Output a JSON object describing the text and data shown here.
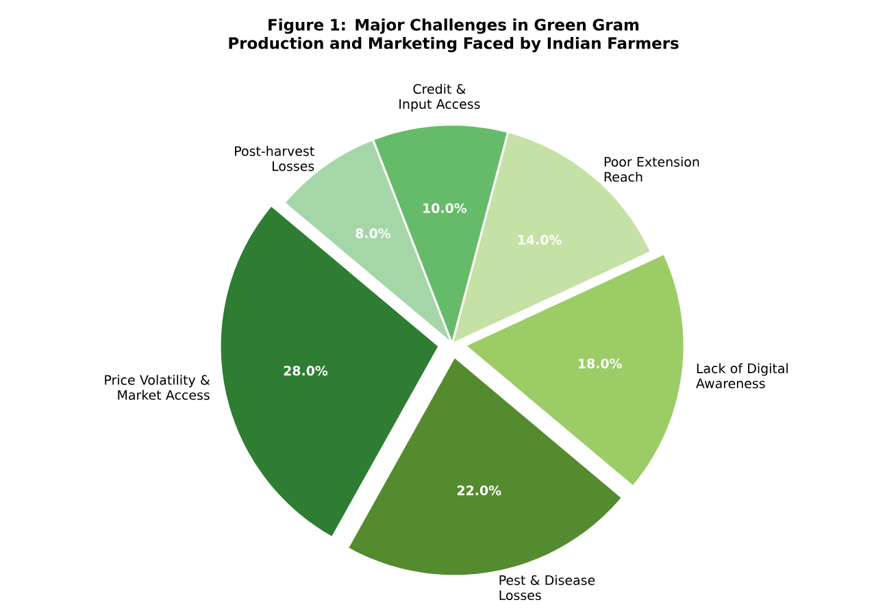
{
  "chart_data": {
    "type": "pie",
    "title": "Figure 1: Major Challenges in Green Gram Production and Marketing Faced by Indian Farmers",
    "categories": [
      "Price Volatility & Market Access",
      "Pest & Disease Losses",
      "Lack of Digital Awareness",
      "Poor Extension Reach",
      "Credit & Input Access",
      "Post-harvest Losses"
    ],
    "values": [
      28,
      22,
      18,
      14,
      10,
      8
    ],
    "colors": [
      "#2e7d32",
      "#558b2f",
      "#9ccc65",
      "#c5e1a5",
      "#66bb6a",
      "#a5d6a7"
    ],
    "value_labels": [
      "28.0%",
      "22.0%",
      "18.0%",
      "14.0%",
      "10.0%",
      "8.0%"
    ]
  }
}
